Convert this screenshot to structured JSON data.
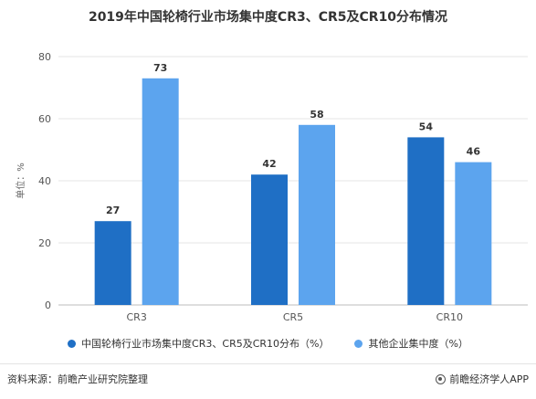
{
  "chart_data": {
    "type": "bar",
    "title": "2019年中国轮椅行业市场集中度CR3、CR5及CR10分布情况",
    "ylabel": "单位：%",
    "xlabel": "",
    "categories": [
      "CR3",
      "CR5",
      "CR10"
    ],
    "series": [
      {
        "name": "中国轮椅行业市场集中度CR3、CR5及CR10分布（%）",
        "values": [
          27,
          42,
          54
        ],
        "color": "#1f6fc5"
      },
      {
        "name": "其他企业集中度（%）",
        "values": [
          73,
          58,
          46
        ],
        "color": "#5ca4ee"
      }
    ],
    "ylim": [
      0,
      80
    ],
    "yticks": [
      0,
      20,
      40,
      60,
      80
    ],
    "grid": true,
    "legend_position": "bottom"
  },
  "footer": {
    "source": "资料来源：前瞻产业研究院整理",
    "brand": "前瞻经济学人APP"
  }
}
